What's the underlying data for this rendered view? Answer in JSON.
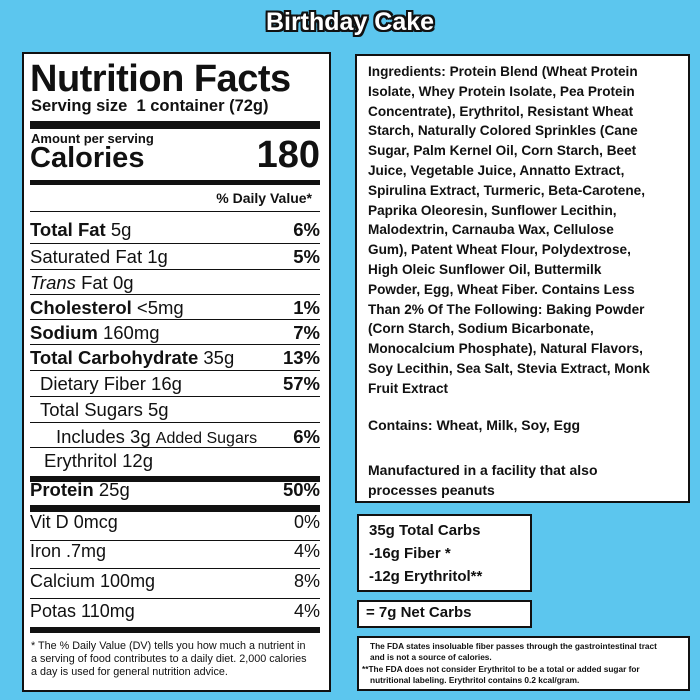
{
  "title": "Birthday Cake",
  "nutrition_facts": {
    "heading": "Nutrition Facts",
    "serving_size_label": "Serving size",
    "serving_size": "1 container (72g)",
    "amount_per_serving": "Amount per serving",
    "calories_label": "Calories",
    "calories": 180,
    "daily_value_heading": "% Daily Value*",
    "rows": [
      {
        "name": "Total Fat",
        "amount": "5g",
        "dv": "6%"
      },
      {
        "name": "Saturated Fat",
        "amount": "1g",
        "dv": "5%"
      },
      {
        "name_italic": "Trans",
        "name": "Fat",
        "amount": "0g"
      },
      {
        "name": "Cholesterol",
        "amount": "<5mg",
        "dv": "1%"
      },
      {
        "name": "Sodium",
        "amount": "160mg",
        "dv": "7%"
      },
      {
        "name": "Total Carbohydrate",
        "amount": "35g",
        "dv": "13%"
      },
      {
        "name": "Dietary Fiber",
        "amount": "16g",
        "dv": "57%"
      },
      {
        "name": "Total Sugars",
        "amount": "5g"
      },
      {
        "name": "Includes",
        "amount": "3g",
        "extra": "Added Sugars",
        "dv": "6%"
      },
      {
        "name": "Erythritol",
        "amount": "12g"
      },
      {
        "name": "Protein",
        "amount": "25g",
        "dv": "50%"
      },
      {
        "name": "Vit D",
        "amount": "0mcg",
        "dv": "0%"
      },
      {
        "name": "Iron",
        "amount": ".7mg",
        "dv": "4%"
      },
      {
        "name": "Calcium",
        "amount": "100mg",
        "dv": "8%"
      },
      {
        "name": "Potas",
        "amount": "110mg",
        "dv": "4%"
      }
    ],
    "footnote": [
      "* The % Daily Value (DV) tells you how much a nutrient in",
      "a serving of food contributes to a daily diet. 2,000 calories",
      "a day is used for general nutrition advice."
    ]
  },
  "ingredients": {
    "lines": [
      "Ingredients: Protein Blend (Wheat Protein",
      "Isolate, Whey Protein Isolate, Pea Protein",
      "Concentrate), Erythritol, Resistant Wheat",
      "Starch, Naturally Colored Sprinkles (Cane",
      "Sugar, Palm Kernel Oil, Corn Starch, Beet",
      "Juice, Vegetable Juice, Annatto Extract,",
      "Spirulina Extract, Turmeric, Beta-Carotene,",
      "Paprika Oleoresin, Sunflower Lecithin,",
      "Malodextrin, Carnauba Wax, Cellulose",
      "Gum), Patent Wheat Flour, Polydextrose,",
      "High Oleic Sunflower Oil, Buttermilk",
      "Powder, Egg, Wheat Fiber. Contains Less",
      "Than 2% Of The Following: Baking Powder",
      "(Corn Starch, Sodium Bicarbonate,",
      "Monocalcium Phosphate), Natural Flavors,",
      "Soy Lecithin, Sea Salt, Stevia Extract, Monk",
      "Fruit Extract"
    ],
    "contains": "Contains: Wheat, Milk, Soy, Egg",
    "facility": [
      "Manufactured in a facility that also",
      "processes peanuts"
    ]
  },
  "net_carbs": {
    "lines": [
      "35g Total Carbs",
      "-16g Fiber *",
      "-12g Erythritol**"
    ],
    "result": "= 7g Net Carbs"
  },
  "notes": [
    "The FDA states insoluable fiber passes through the gastrointestinal tract",
    "and is not  a source of calories.",
    "**The FDA does not consider Erythritol to be a total or added sugar for",
    "nutritional labeling. Erythritol contains 0.2 kcal/gram."
  ]
}
